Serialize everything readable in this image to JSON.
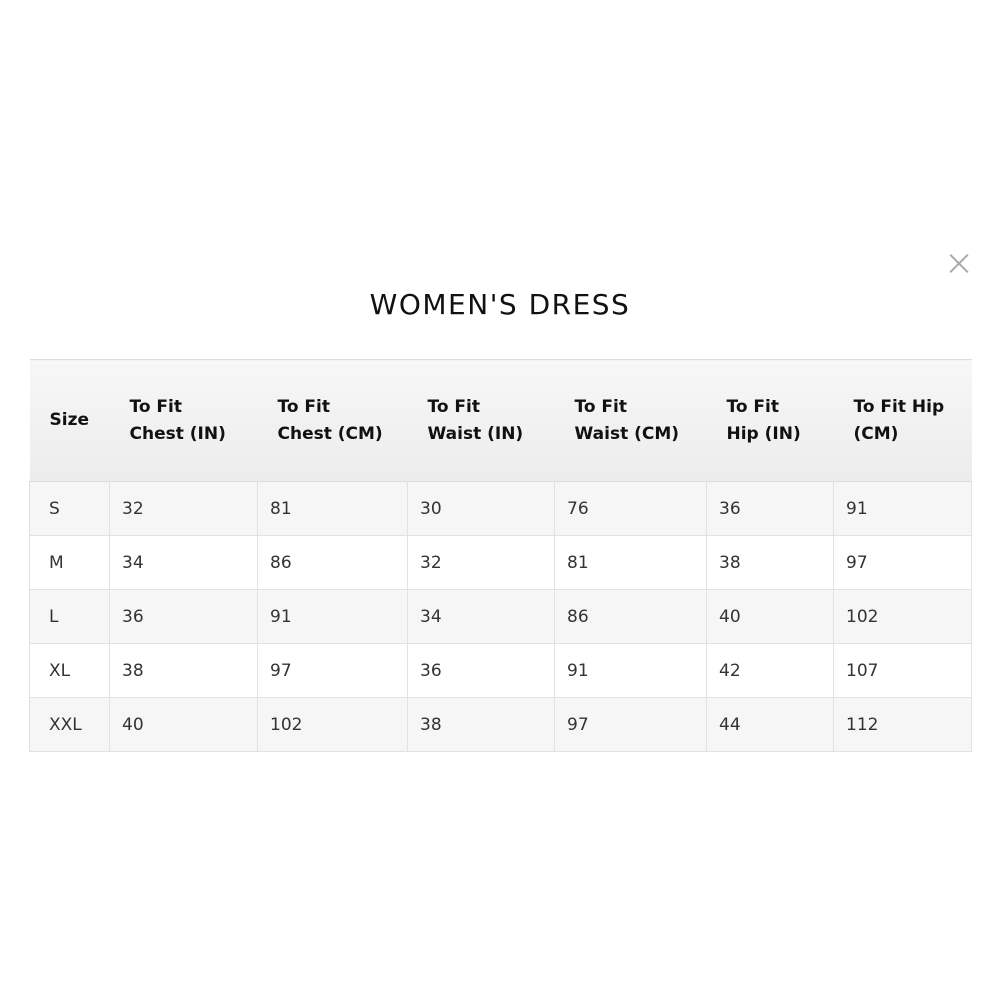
{
  "dialog": {
    "title": "WOMEN'S DRESS",
    "close_icon": "close-icon"
  },
  "table": {
    "headers": [
      "Size",
      "To Fit Chest (IN)",
      "To Fit Chest (CM)",
      "To Fit Waist (IN)",
      "To Fit Waist (CM)",
      "To Fit Hip (IN)",
      "To Fit Hip (CM)"
    ],
    "rows": [
      [
        "S",
        "32",
        "81",
        "30",
        "76",
        "36",
        "91"
      ],
      [
        "M",
        "34",
        "86",
        "32",
        "81",
        "38",
        "97"
      ],
      [
        "L",
        "36",
        "91",
        "34",
        "86",
        "40",
        "102"
      ],
      [
        "XL",
        "38",
        "97",
        "36",
        "91",
        "42",
        "107"
      ],
      [
        "XXL",
        "40",
        "102",
        "38",
        "97",
        "44",
        "112"
      ]
    ]
  }
}
